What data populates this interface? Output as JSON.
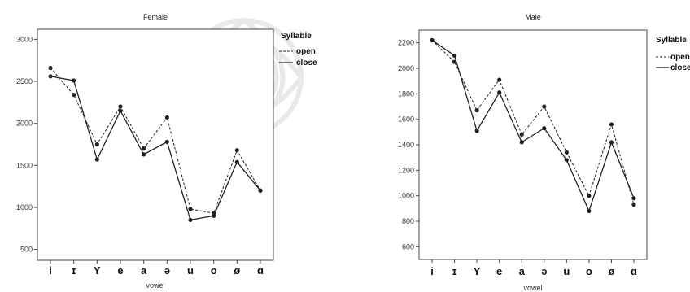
{
  "chart_data": [
    {
      "type": "line",
      "title": "Female",
      "xlabel": "vowel",
      "ylabel": "",
      "categories": [
        "i",
        "ɪ",
        "Y",
        "e",
        "a",
        "ə",
        "u",
        "o",
        "ø",
        "ɑ"
      ],
      "yticks": [
        500,
        1000,
        1500,
        2000,
        2500,
        3000
      ],
      "ylim": [
        370,
        3120
      ],
      "legend_title": "Syllable",
      "legend_position": "top-right",
      "series": [
        {
          "name": "open",
          "style": "dashed",
          "values": [
            2660,
            2340,
            1750,
            2200,
            1700,
            2070,
            980,
            930,
            1680,
            1200
          ]
        },
        {
          "name": "close",
          "style": "solid",
          "values": [
            2560,
            2510,
            1570,
            2150,
            1630,
            1780,
            850,
            900,
            1540,
            1200
          ]
        }
      ]
    },
    {
      "type": "line",
      "title": "Male",
      "xlabel": "vowel",
      "ylabel": "",
      "categories": [
        "i",
        "ɪ",
        "Y",
        "e",
        "a",
        "ə",
        "u",
        "o",
        "ø",
        "ɑ"
      ],
      "yticks": [
        600,
        800,
        1000,
        1200,
        1400,
        1600,
        1800,
        2000,
        2200
      ],
      "ylim": [
        500,
        2300
      ],
      "legend_title": "Syllable",
      "legend_position": "top-right",
      "series": [
        {
          "name": "open",
          "style": "dashed",
          "values": [
            2220,
            2050,
            1670,
            1910,
            1480,
            1700,
            1340,
            1000,
            1560,
            930
          ]
        },
        {
          "name": "close",
          "style": "solid",
          "values": [
            2220,
            2100,
            1510,
            1810,
            1420,
            1530,
            1280,
            880,
            1420,
            980
          ]
        }
      ]
    }
  ],
  "colors": {
    "line": "#222222",
    "plot_bg": "#ffffff",
    "frame": "#444444"
  }
}
